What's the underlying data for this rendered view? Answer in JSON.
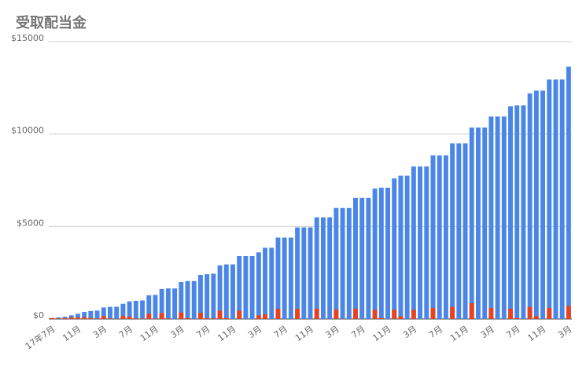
{
  "chart_data": {
    "type": "bar",
    "title": "受取配当金",
    "categories": [
      "17年7月",
      null,
      null,
      null,
      "11月",
      null,
      null,
      null,
      "3月",
      null,
      null,
      null,
      "7月",
      null,
      null,
      null,
      "11月",
      null,
      null,
      null,
      "3月",
      null,
      null,
      null,
      "7月",
      null,
      null,
      null,
      "11月",
      null,
      null,
      null,
      "3月",
      null,
      null,
      null,
      "7月",
      null,
      null,
      null,
      "11月",
      null,
      null,
      null,
      "3月",
      null,
      null,
      null,
      "7月",
      null,
      null,
      null,
      "11月",
      null,
      null,
      null,
      "3月",
      null,
      null,
      null,
      "7月",
      null,
      null,
      null,
      "11月",
      null,
      null,
      null,
      "3月",
      null,
      null,
      null,
      "7月",
      null,
      null,
      null,
      "11月",
      null,
      null,
      null,
      "3月"
    ],
    "series": [
      {
        "color": "#4a86e8",
        "values": [
          50,
          80,
          120,
          200,
          280,
          380,
          430,
          450,
          620,
          650,
          660,
          820,
          950,
          980,
          1000,
          1280,
          1300,
          1620,
          1650,
          1650,
          2000,
          2050,
          2050,
          2380,
          2420,
          2450,
          2900,
          2950,
          2950,
          3400,
          3400,
          3400,
          3600,
          3850,
          3850,
          4400,
          4400,
          4400,
          4950,
          4950,
          4950,
          5500,
          5500,
          5500,
          6000,
          6000,
          6000,
          6550,
          6550,
          6550,
          7050,
          7100,
          7100,
          7600,
          7750,
          7750,
          8250,
          8250,
          8250,
          8850,
          8850,
          8850,
          9500,
          9500,
          9500,
          10350,
          10350,
          10350,
          10950,
          10950,
          10950,
          11500,
          11550,
          11550,
          12200,
          12350,
          12350,
          12950,
          12950,
          12950,
          13650
        ]
      },
      {
        "color": "#e8431f",
        "values": [
          50,
          30,
          40,
          80,
          80,
          100,
          50,
          20,
          170,
          30,
          10,
          160,
          130,
          30,
          20,
          280,
          20,
          320,
          30,
          0,
          350,
          50,
          0,
          330,
          40,
          30,
          450,
          50,
          0,
          450,
          0,
          0,
          200,
          250,
          0,
          550,
          0,
          0,
          550,
          0,
          0,
          550,
          0,
          0,
          500,
          0,
          0,
          550,
          0,
          0,
          500,
          50,
          0,
          500,
          150,
          0,
          500,
          0,
          0,
          600,
          0,
          0,
          650,
          0,
          0,
          850,
          0,
          0,
          600,
          0,
          0,
          550,
          50,
          0,
          650,
          150,
          0,
          600,
          0,
          0,
          700
        ]
      }
    ],
    "ylim": [
      0,
      15000
    ],
    "yticks": [
      {
        "value": 0,
        "label": "$0"
      },
      {
        "value": 5000,
        "label": "$5000"
      },
      {
        "value": 10000,
        "label": "$10000"
      },
      {
        "value": 15000,
        "label": "$15000"
      }
    ],
    "grid": true
  }
}
